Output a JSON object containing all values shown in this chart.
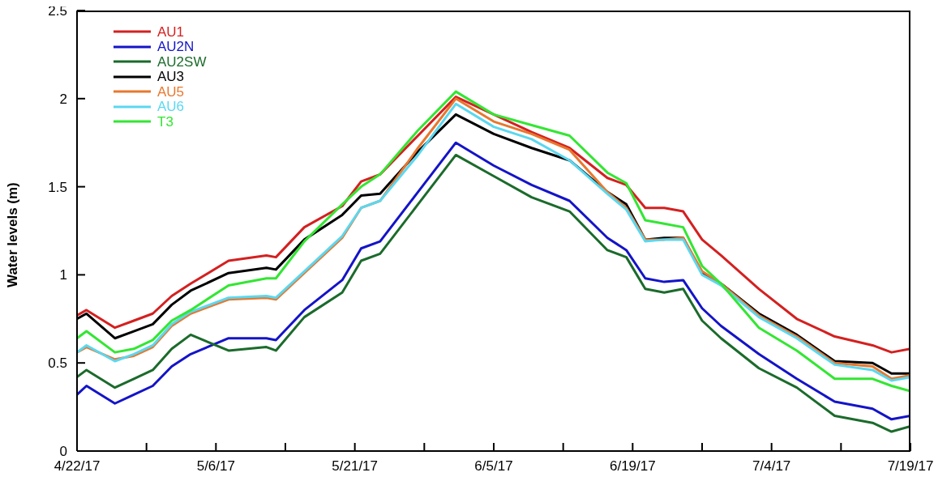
{
  "chart_data": {
    "type": "line",
    "ylabel": "Water levels (m)",
    "x": [
      "--04-22",
      "--04-23",
      "--04-26",
      "--04-28",
      "--04-30",
      "--05-02",
      "--05-04",
      "--05-08",
      "--05-12",
      "--05-13",
      "--05-16",
      "--05-20",
      "--05-22",
      "--05-24",
      "--05-28",
      "--06-01",
      "--06-05",
      "--06-09",
      "--06-13",
      "--06-17",
      "--06-19",
      "--06-21",
      "--06-23",
      "--06-25",
      "--06-27",
      "--06-29",
      "--07-03",
      "--07-07",
      "--07-11",
      "--07-15",
      "--07-17",
      "--07-19"
    ],
    "series": [
      {
        "name": "AU1",
        "color": "#d42020",
        "values": [
          0.77,
          0.8,
          0.7,
          0.74,
          0.78,
          0.88,
          0.95,
          1.08,
          1.11,
          1.1,
          1.27,
          1.39,
          1.53,
          1.57,
          1.79,
          2.01,
          1.91,
          1.81,
          1.72,
          1.55,
          1.51,
          1.38,
          1.38,
          1.36,
          1.2,
          1.11,
          0.92,
          0.75,
          0.65,
          0.6,
          0.56,
          0.58
        ]
      },
      {
        "name": "AU2N",
        "color": "#1414c8",
        "values": [
          0.32,
          0.37,
          0.27,
          0.32,
          0.37,
          0.48,
          0.55,
          0.64,
          0.64,
          0.63,
          0.8,
          0.97,
          1.15,
          1.19,
          1.47,
          1.75,
          1.62,
          1.51,
          1.42,
          1.21,
          1.14,
          0.98,
          0.96,
          0.97,
          0.81,
          0.71,
          0.55,
          0.41,
          0.28,
          0.24,
          0.18,
          0.2
        ]
      },
      {
        "name": "AU2SW",
        "color": "#1b6b2b",
        "values": [
          0.42,
          0.46,
          0.36,
          0.41,
          0.46,
          0.58,
          0.66,
          0.57,
          0.59,
          0.57,
          0.76,
          0.9,
          1.08,
          1.12,
          1.4,
          1.68,
          1.56,
          1.44,
          1.36,
          1.14,
          1.1,
          0.92,
          0.9,
          0.92,
          0.74,
          0.64,
          0.47,
          0.36,
          0.2,
          0.16,
          0.11,
          0.14
        ]
      },
      {
        "name": "AU3",
        "color": "#000000",
        "values": [
          0.75,
          0.78,
          0.64,
          0.68,
          0.72,
          0.83,
          0.91,
          1.01,
          1.04,
          1.03,
          1.2,
          1.34,
          1.45,
          1.46,
          1.7,
          1.91,
          1.8,
          1.72,
          1.65,
          1.47,
          1.4,
          1.2,
          1.21,
          1.21,
          1.01,
          0.95,
          0.78,
          0.66,
          0.51,
          0.5,
          0.44,
          0.44
        ]
      },
      {
        "name": "AU5",
        "color": "#e8772e",
        "values": [
          0.56,
          0.59,
          0.52,
          0.54,
          0.59,
          0.71,
          0.78,
          0.86,
          0.87,
          0.86,
          1.01,
          1.21,
          1.38,
          1.42,
          1.72,
          2.0,
          1.87,
          1.8,
          1.71,
          1.47,
          1.38,
          1.2,
          1.2,
          1.21,
          1.02,
          0.95,
          0.77,
          0.65,
          0.5,
          0.48,
          0.41,
          0.43
        ]
      },
      {
        "name": "AU6",
        "color": "#5ad8f0",
        "values": [
          0.56,
          0.6,
          0.51,
          0.55,
          0.6,
          0.72,
          0.79,
          0.87,
          0.88,
          0.87,
          1.02,
          1.22,
          1.38,
          1.42,
          1.68,
          1.97,
          1.84,
          1.77,
          1.65,
          1.46,
          1.37,
          1.19,
          1.2,
          1.2,
          1.0,
          0.94,
          0.76,
          0.64,
          0.49,
          0.46,
          0.4,
          0.42
        ]
      },
      {
        "name": "T3",
        "color": "#33e633",
        "values": [
          0.64,
          0.68,
          0.56,
          0.58,
          0.63,
          0.74,
          0.8,
          0.94,
          0.98,
          0.98,
          1.19,
          1.4,
          1.5,
          1.57,
          1.82,
          2.04,
          1.91,
          1.85,
          1.79,
          1.58,
          1.52,
          1.31,
          1.29,
          1.27,
          1.05,
          0.95,
          0.7,
          0.57,
          0.41,
          0.41,
          0.37,
          0.34
        ]
      }
    ],
    "xlim": [
      "--04-22",
      "--07-19"
    ],
    "xticks": [
      {
        "value": "--04-22",
        "label": "4/22/17"
      },
      {
        "value": "--04-29T08:00",
        "label": null
      },
      {
        "value": "--05-06T16:00",
        "label": "5/6/17"
      },
      {
        "value": "--05-14",
        "label": null
      },
      {
        "value": "--05-21T08:00",
        "label": "5/21/17"
      },
      {
        "value": "--05-28T16:00",
        "label": null
      },
      {
        "value": "--06-05",
        "label": "6/5/17"
      },
      {
        "value": "--06-12T08:00",
        "label": null
      },
      {
        "value": "--06-19T16:00",
        "label": "6/19/17"
      },
      {
        "value": "--06-27",
        "label": null
      },
      {
        "value": "--07-04T08:00",
        "label": "7/4/17"
      },
      {
        "value": "--07-11T16:00",
        "label": null
      },
      {
        "value": "--07-19",
        "label": "7/19/17"
      }
    ],
    "ylim": [
      0,
      2.5
    ],
    "yticks": [
      0,
      0.5,
      1,
      1.5,
      2,
      2.5
    ],
    "grid": false,
    "legend": "top left",
    "line_style": "solid"
  }
}
